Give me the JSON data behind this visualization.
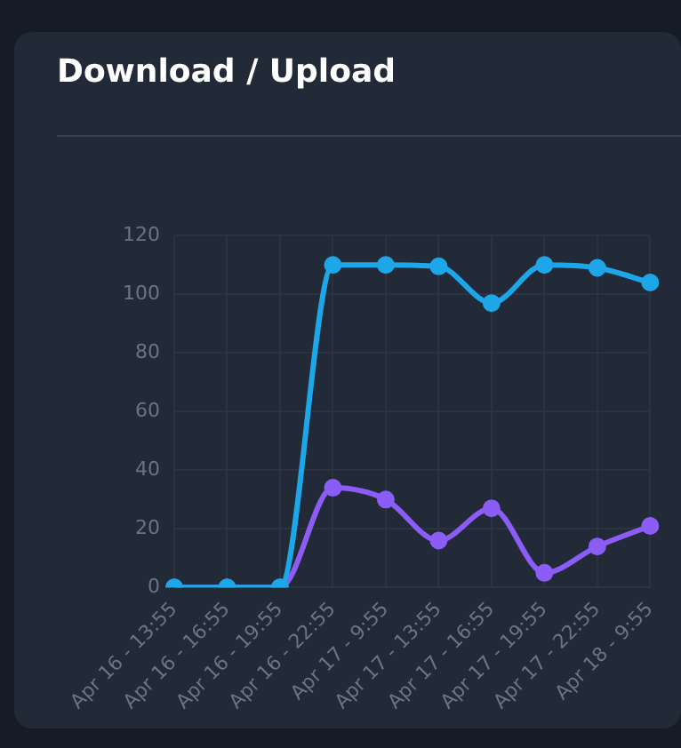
{
  "chart_data": {
    "type": "line",
    "title": "Download / Upload",
    "categories": [
      "Apr 16 - 13:55",
      "Apr 16 - 16:55",
      "Apr 16 - 19:55",
      "Apr 16 - 22:55",
      "Apr 17 - 9:55",
      "Apr 17 - 13:55",
      "Apr 17 - 16:55",
      "Apr 17 - 19:55",
      "Apr 17 - 22:55",
      "Apr 18 - 9:55"
    ],
    "series": [
      {
        "color": "#1ea7e8",
        "values": [
          0,
          0,
          0,
          110,
          110,
          109.5,
          97,
          110,
          109,
          104
        ]
      },
      {
        "color": "#8b5cf6",
        "values": [
          0,
          0,
          0,
          34,
          30,
          16,
          27,
          5,
          14,
          21
        ]
      }
    ],
    "ylim": [
      0,
      120
    ],
    "yticks": [
      0,
      20,
      40,
      60,
      80,
      100,
      120
    ],
    "grid": true,
    "legend": false,
    "marker": "circle",
    "line_style": "solid"
  }
}
